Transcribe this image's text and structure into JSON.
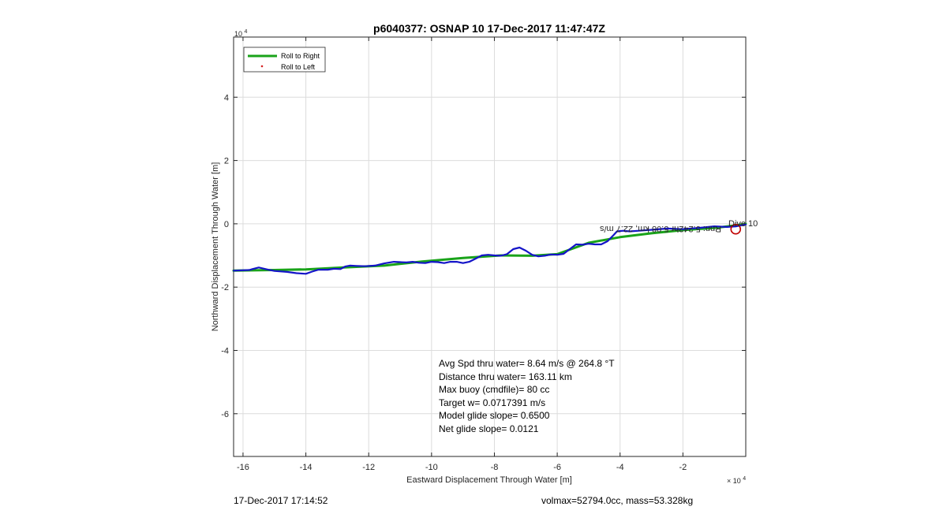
{
  "chart_data": {
    "type": "line",
    "title": "p6040377: OSNAP 10 17-Dec-2017 11:47:47Z",
    "xlabel": "Eastward Displacement Through Water [m]",
    "ylabel": "Northward Displacement Through Water [m]",
    "x_multiplier": "10",
    "x_exponent": "4",
    "y_multiplier": "10",
    "y_exponent": "4",
    "xlim": [
      -163000,
      0
    ],
    "ylim": [
      -73500,
      59000
    ],
    "xticks": [
      -160000,
      -140000,
      -120000,
      -100000,
      -80000,
      -60000,
      -40000,
      -20000
    ],
    "xtick_labels": [
      "-16",
      "-14",
      "-12",
      "-10",
      "-8",
      "-6",
      "-4",
      "-2"
    ],
    "yticks": [
      -60000,
      -40000,
      -20000,
      0,
      20000,
      40000
    ],
    "ytick_labels": [
      "-6",
      "-4",
      "-2",
      "0",
      "2",
      "4"
    ],
    "grid": true,
    "legend_position": "top-left",
    "series": [
      {
        "name": "Roll to Right",
        "color": "#1aa31a",
        "x": [
          -163000,
          -150000,
          -140000,
          -128000,
          -115000,
          -103000,
          -90000,
          -78000,
          -68000,
          -60000,
          -50000,
          -40000,
          -30000,
          -20000,
          -10000,
          -3000,
          0
        ],
        "y": [
          -14800,
          -14600,
          -14400,
          -13800,
          -13200,
          -11900,
          -10800,
          -10000,
          -10100,
          -9600,
          -6000,
          -4200,
          -3000,
          -2000,
          -1300,
          -500,
          0
        ]
      },
      {
        "name": "Roll to Left",
        "color": "#d62020",
        "x": [],
        "y": []
      },
      {
        "name": "",
        "color": "#1414c8",
        "x": [
          -163000,
          -158000,
          -157000,
          -155000,
          -152000,
          -150000,
          -146000,
          -143000,
          -140000,
          -138000,
          -136000,
          -133000,
          -131000,
          -129000,
          -127500,
          -126000,
          -124000,
          -121000,
          -118000,
          -115000,
          -112000,
          -110000,
          -108000,
          -106000,
          -104000,
          -102000,
          -100000,
          -98000,
          -96000,
          -94000,
          -92000,
          -90000,
          -88000,
          -86000,
          -84000,
          -82000,
          -80000,
          -78000,
          -76000,
          -74000,
          -72000,
          -70000,
          -68000,
          -66000,
          -64000,
          -62000,
          -60000,
          -58000,
          -56000,
          -54000,
          -52000,
          -50000,
          -48000,
          -46000,
          -44000,
          -42000,
          -41000,
          -39000,
          -37000,
          -34000,
          -30000,
          -25000,
          -20000,
          -15000,
          -10000,
          -6000,
          -3000,
          0
        ],
        "y": [
          -14800,
          -14600,
          -14300,
          -13800,
          -14500,
          -14900,
          -15200,
          -15600,
          -15800,
          -15100,
          -14500,
          -14500,
          -14200,
          -14300,
          -13500,
          -13200,
          -13300,
          -13400,
          -13200,
          -12500,
          -12000,
          -12100,
          -12200,
          -12000,
          -12300,
          -12400,
          -12000,
          -12100,
          -12400,
          -12000,
          -12000,
          -12400,
          -12000,
          -11000,
          -10000,
          -9800,
          -10000,
          -10100,
          -9600,
          -8000,
          -7500,
          -8500,
          -9800,
          -10300,
          -10100,
          -9700,
          -9800,
          -9500,
          -8000,
          -6500,
          -6600,
          -6300,
          -6500,
          -6500,
          -5500,
          -3500,
          -2400,
          -2200,
          -2400,
          -2200,
          -1900,
          -1500,
          -1700,
          -1300,
          -800,
          -1000,
          -800,
          -200
        ]
      }
    ],
    "markers": [
      {
        "x": -3200,
        "y": -1700,
        "color": "#c00000"
      }
    ],
    "annotation_mirrored": "Rnn: 5.242hr 5.08 km, 22.7 m/s",
    "annotation_start_overlap": "Dive 10"
  },
  "stats": [
    "Avg Spd thru water=  8.64 m/s @ 264.8 °T",
    "Distance thru water= 163.11 km",
    "Max buoy (cmdfile)= 80 cc",
    "Target w= 0.0717391 m/s",
    "Model glide slope= 0.6500",
    "Net glide slope= 0.0121"
  ],
  "footer": {
    "timestamp": "17-Dec-2017 17:14:52",
    "mass_info": "volmax=52794.0cc, mass=53.328kg"
  }
}
